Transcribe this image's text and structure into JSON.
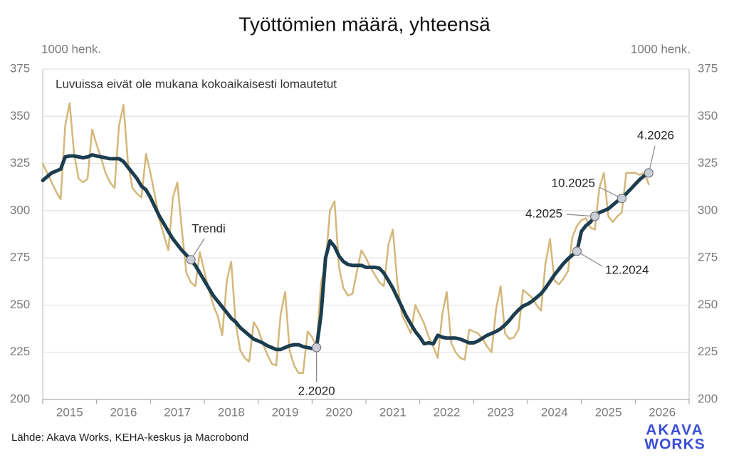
{
  "chart_data": {
    "type": "line",
    "title": "Työttömien määrä, yhteensä",
    "subtitle": "Luvuissa eivät ole mukana kokoaikaisesti lomautetut",
    "y_unit_left": "1000 henk.",
    "y_unit_right": "1000 henk.",
    "source": "Lähde: Akava Works, KEHA-keskus ja Macrobond",
    "logo": [
      "AKAVA",
      "WORKS"
    ],
    "logo_color": "#3a4fd6",
    "grid": true,
    "xlim": [
      2015,
      2027
    ],
    "xticks": [
      2015,
      2016,
      2017,
      2018,
      2019,
      2020,
      2021,
      2022,
      2023,
      2024,
      2025,
      2026,
      2027
    ],
    "xtick_labels": [
      {
        "value": 2015.5,
        "label": "2015"
      },
      {
        "value": 2016.5,
        "label": "2016"
      },
      {
        "value": 2017.5,
        "label": "2017"
      },
      {
        "value": 2018.5,
        "label": "2018"
      },
      {
        "value": 2019.5,
        "label": "2019"
      },
      {
        "value": 2020.5,
        "label": "2020"
      },
      {
        "value": 2021.5,
        "label": "2021"
      },
      {
        "value": 2022.5,
        "label": "2022"
      },
      {
        "value": 2023.5,
        "label": "2023"
      },
      {
        "value": 2024.5,
        "label": "2024"
      },
      {
        "value": 2025.5,
        "label": "2025"
      },
      {
        "value": 2026.5,
        "label": "2026"
      }
    ],
    "ylim": [
      200,
      375
    ],
    "yticks": [
      200,
      225,
      250,
      275,
      300,
      325,
      350,
      375
    ],
    "x": [
      2015,
      2015.083,
      2015.167,
      2015.25,
      2015.333,
      2015.417,
      2015.5,
      2015.583,
      2015.667,
      2015.75,
      2015.833,
      2015.917,
      2016,
      2016.083,
      2016.167,
      2016.25,
      2016.333,
      2016.417,
      2016.5,
      2016.583,
      2016.667,
      2016.75,
      2016.833,
      2016.917,
      2017,
      2017.083,
      2017.167,
      2017.25,
      2017.333,
      2017.417,
      2017.5,
      2017.583,
      2017.667,
      2017.75,
      2017.833,
      2017.917,
      2018,
      2018.083,
      2018.167,
      2018.25,
      2018.333,
      2018.417,
      2018.5,
      2018.583,
      2018.667,
      2018.75,
      2018.833,
      2018.917,
      2019,
      2019.083,
      2019.167,
      2019.25,
      2019.333,
      2019.417,
      2019.5,
      2019.583,
      2019.667,
      2019.75,
      2019.833,
      2019.917,
      2020,
      2020.083,
      2020.167,
      2020.25,
      2020.333,
      2020.417,
      2020.5,
      2020.583,
      2020.667,
      2020.75,
      2020.833,
      2020.917,
      2021,
      2021.083,
      2021.167,
      2021.25,
      2021.333,
      2021.417,
      2021.5,
      2021.583,
      2021.667,
      2021.75,
      2021.833,
      2021.917,
      2022,
      2022.083,
      2022.167,
      2022.25,
      2022.333,
      2022.417,
      2022.5,
      2022.583,
      2022.667,
      2022.75,
      2022.833,
      2022.917,
      2023,
      2023.083,
      2023.167,
      2023.25,
      2023.333,
      2023.417,
      2023.5,
      2023.583,
      2023.667,
      2023.75,
      2023.833,
      2023.917,
      2024,
      2024.083,
      2024.167,
      2024.25,
      2024.333,
      2024.417,
      2024.5,
      2024.583,
      2024.667,
      2024.75,
      2024.833,
      2024.917,
      2025,
      2025.083,
      2025.167,
      2025.25,
      2025.333,
      2025.417,
      2025.5,
      2025.583,
      2025.667,
      2025.75,
      2025.833,
      2025.917,
      2026,
      2026.083,
      2026.167,
      2026.25
    ],
    "series": [
      {
        "color": "#d4b77a",
        "width": 2.5,
        "values": [
          325,
          320,
          315,
          310,
          306,
          345,
          357,
          330,
          317,
          315,
          317,
          343,
          335,
          328,
          320,
          315,
          312,
          345,
          356,
          325,
          312,
          309,
          307,
          330,
          320,
          308,
          295,
          287,
          279,
          307,
          315,
          290,
          267,
          262,
          260,
          278,
          268,
          258,
          250,
          244,
          234,
          263,
          273,
          240,
          226,
          222,
          220,
          241,
          237,
          230,
          224,
          219,
          218,
          245,
          257,
          226,
          218,
          214,
          214,
          236,
          233,
          228,
          262,
          272,
          300,
          305,
          270,
          259,
          255,
          256,
          268,
          279,
          275,
          270,
          266,
          262,
          260,
          282,
          290,
          262,
          245,
          240,
          235,
          250,
          245,
          240,
          233,
          228,
          222,
          245,
          257,
          230,
          225,
          222,
          221,
          237,
          236,
          235,
          232,
          228,
          225,
          248,
          260,
          235,
          232,
          233,
          237,
          258,
          256,
          254,
          250,
          247,
          272,
          285,
          263,
          261,
          264,
          268,
          286,
          292,
          295,
          296,
          291,
          290,
          312,
          320,
          297,
          294,
          297,
          299,
          320,
          320,
          320,
          319,
          320,
          314
        ]
      },
      {
        "color": "#1b3d4f",
        "width": 5,
        "values": [
          316,
          318,
          320,
          321,
          322,
          328.5,
          329,
          329,
          328.5,
          328,
          328.5,
          329.5,
          329,
          328.5,
          328,
          327.5,
          327.5,
          327.5,
          326,
          323,
          320,
          317,
          313,
          311,
          307,
          302,
          297,
          293,
          289,
          285,
          282,
          279,
          276.5,
          274,
          271,
          267,
          263,
          259,
          255,
          252,
          249,
          246,
          243,
          241,
          238,
          236,
          234,
          232,
          231,
          230,
          228.5,
          227.5,
          226.5,
          226.5,
          227.5,
          228.5,
          229,
          229,
          228,
          227.5,
          227,
          227.5,
          245,
          275,
          284,
          281,
          276,
          273,
          271.5,
          271,
          271,
          271,
          270,
          270,
          270,
          269.5,
          267,
          263,
          259,
          254,
          249,
          244,
          240,
          236,
          233,
          229.5,
          230,
          229.5,
          234,
          233,
          232.5,
          232.5,
          232.5,
          232,
          231,
          230,
          230,
          231,
          232.5,
          234,
          235,
          236,
          237.5,
          239.5,
          242,
          245,
          247.5,
          249.5,
          250.5,
          252,
          254,
          256,
          259,
          262.5,
          266,
          269,
          272,
          274.5,
          276.5,
          278.5,
          289,
          292,
          294,
          297,
          299,
          300,
          301,
          303,
          305,
          306.5,
          309,
          311.5,
          314,
          316.5,
          318.5,
          320
        ]
      }
    ],
    "annotations": [
      {
        "text": "Trendi",
        "x": 2017.75
      },
      {
        "text": "2.2020",
        "x": 2020.083
      },
      {
        "text": "12.2024",
        "x": 2024.917
      },
      {
        "text": "4.2025",
        "x": 2025.25
      },
      {
        "text": "10.2025",
        "x": 2025.75
      },
      {
        "text": "4.2026",
        "x": 2026.25
      }
    ]
  }
}
